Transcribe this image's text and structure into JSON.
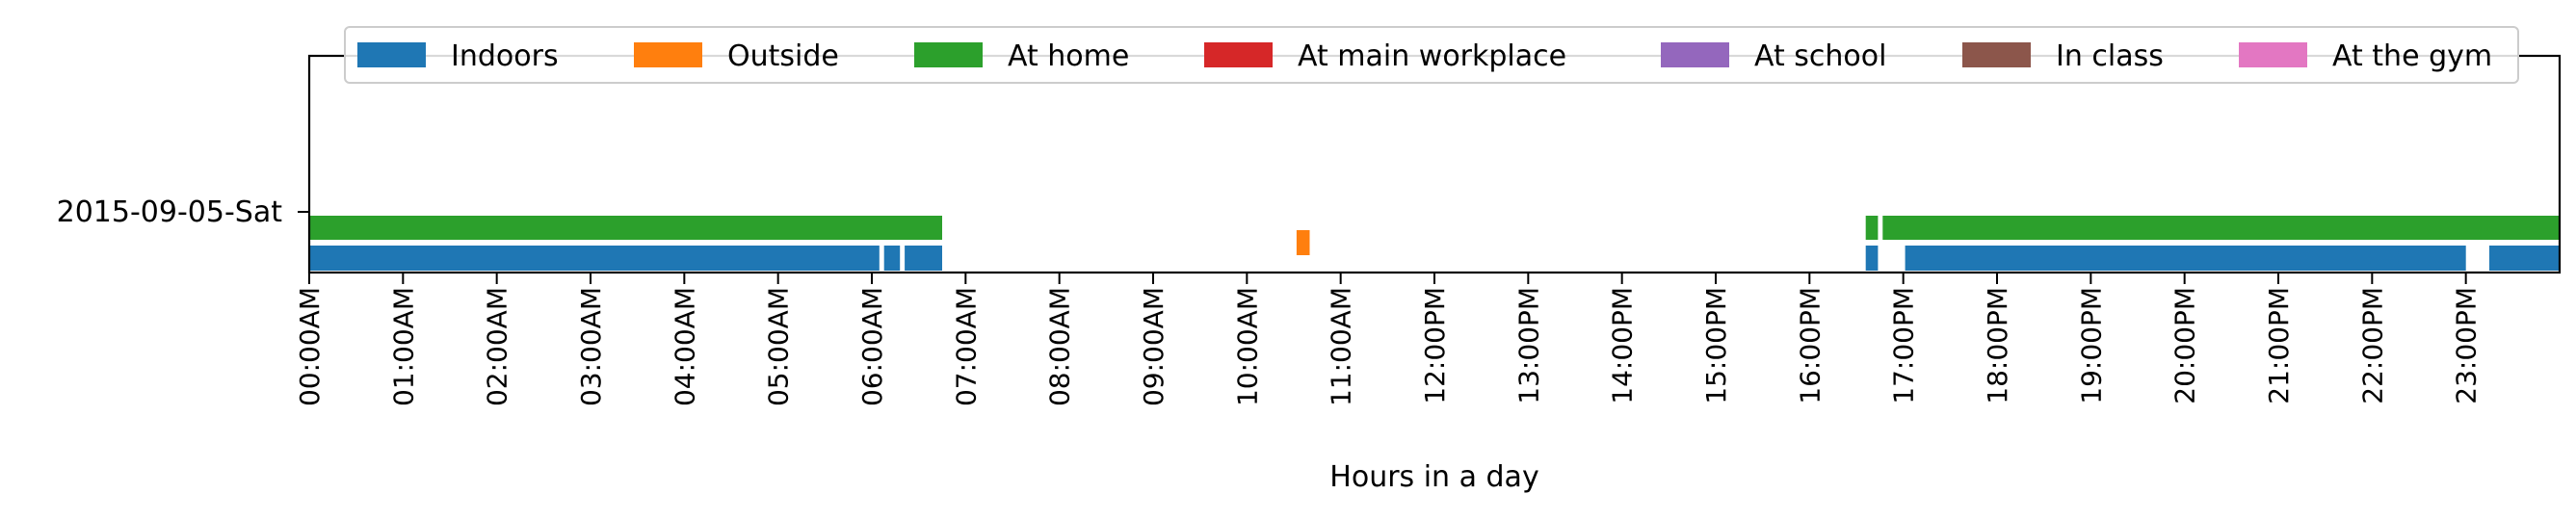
{
  "chart_data": {
    "type": "bar",
    "xlabel": "Hours in a day",
    "xlim": [
      0,
      24
    ],
    "y_categories": [
      "2015-09-05-Sat"
    ],
    "x_ticks": [
      "00:00AM",
      "01:00AM",
      "02:00AM",
      "03:00AM",
      "04:00AM",
      "05:00AM",
      "06:00AM",
      "07:00AM",
      "08:00AM",
      "09:00AM",
      "10:00AM",
      "11:00AM",
      "12:00PM",
      "13:00PM",
      "14:00PM",
      "15:00PM",
      "16:00PM",
      "17:00PM",
      "18:00PM",
      "19:00PM",
      "20:00PM",
      "21:00PM",
      "22:00PM",
      "23:00PM"
    ],
    "legend_placement": "top-center",
    "grid": false,
    "series": [
      {
        "name": "Indoors",
        "color": "#1f77b4",
        "intervals": [
          [
            0.0,
            6.08
          ],
          [
            6.13,
            6.3
          ],
          [
            6.35,
            6.75
          ],
          [
            16.6,
            16.73
          ],
          [
            17.02,
            23.0
          ],
          [
            23.25,
            24.0
          ]
        ]
      },
      {
        "name": "Outside",
        "color": "#ff7f0e",
        "intervals": [
          [
            10.53,
            10.67
          ]
        ]
      },
      {
        "name": "At home",
        "color": "#2ca02c",
        "intervals": [
          [
            0.0,
            6.75
          ],
          [
            16.6,
            16.73
          ],
          [
            16.78,
            24.0
          ]
        ]
      },
      {
        "name": "At main workplace",
        "color": "#d62728",
        "intervals": []
      },
      {
        "name": "At school",
        "color": "#9467bd",
        "intervals": []
      },
      {
        "name": "In class",
        "color": "#8c564b",
        "intervals": []
      },
      {
        "name": "At the gym",
        "color": "#e377c2",
        "intervals": []
      }
    ]
  }
}
